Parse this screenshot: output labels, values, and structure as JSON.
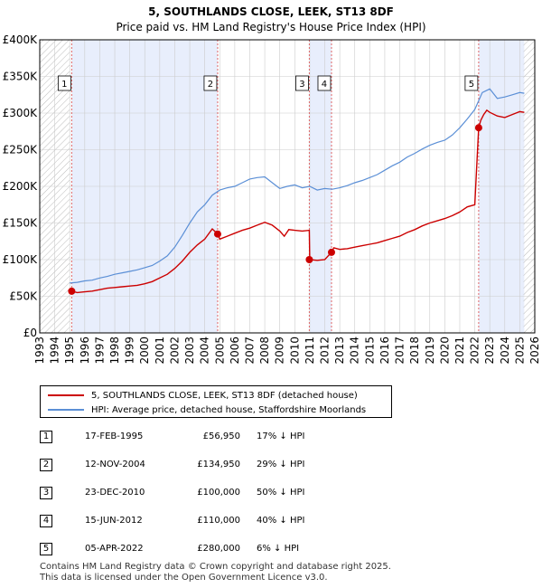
{
  "chart_data": {
    "type": "line",
    "title": "5, SOUTHLANDS CLOSE, LEEK, ST13 8DF",
    "subtitle": "Price paid vs. HM Land Registry's House Price Index (HPI)",
    "xlabel": "",
    "ylabel": "",
    "xlim": [
      1993,
      2026
    ],
    "ylim": [
      0,
      400000
    ],
    "x_ticks": [
      1993,
      1994,
      1995,
      1996,
      1997,
      1998,
      1999,
      2000,
      2001,
      2002,
      2003,
      2004,
      2005,
      2006,
      2007,
      2008,
      2009,
      2010,
      2011,
      2012,
      2013,
      2014,
      2015,
      2016,
      2017,
      2018,
      2019,
      2020,
      2021,
      2022,
      2023,
      2024,
      2025,
      2026
    ],
    "y_ticks": [
      {
        "value": 0,
        "label": "£0"
      },
      {
        "value": 50000,
        "label": "£50K"
      },
      {
        "value": 100000,
        "label": "£100K"
      },
      {
        "value": 150000,
        "label": "£150K"
      },
      {
        "value": 200000,
        "label": "£200K"
      },
      {
        "value": 250000,
        "label": "£250K"
      },
      {
        "value": 300000,
        "label": "£300K"
      },
      {
        "value": 350000,
        "label": "£350K"
      },
      {
        "value": 400000,
        "label": "£400K"
      }
    ],
    "grid": true,
    "hatched_ranges": [
      [
        1993,
        1995.0
      ],
      [
        2025.25,
        2026
      ]
    ],
    "colors": {
      "property": "#cc0000",
      "hpi": "#5b8fd6",
      "shade": "#e8eefc",
      "grid": "#cccccc",
      "vline": "#e06666"
    },
    "series": [
      {
        "name": "5, SOUTHLANDS CLOSE, LEEK, ST13 8DF (detached house)",
        "x": [
          1995.13,
          1995.5,
          1996.0,
          1996.5,
          1997.0,
          1997.5,
          1998.0,
          1998.5,
          1999.0,
          1999.5,
          2000.0,
          2000.5,
          2001.0,
          2001.5,
          2002.0,
          2002.5,
          2003.0,
          2003.5,
          2004.0,
          2004.5,
          2004.86,
          2005.0,
          2005.5,
          2006.0,
          2006.5,
          2007.0,
          2007.5,
          2008.0,
          2008.5,
          2009.0,
          2009.3,
          2009.6,
          2010.0,
          2010.5,
          2010.97,
          2011.0,
          2011.5,
          2012.0,
          2012.45,
          2012.6,
          2013.0,
          2013.5,
          2014.0,
          2014.5,
          2015.0,
          2015.5,
          2016.0,
          2016.5,
          2017.0,
          2017.5,
          2018.0,
          2018.5,
          2019.0,
          2019.5,
          2020.0,
          2020.5,
          2021.0,
          2021.5,
          2022.0,
          2022.26,
          2022.4,
          2022.6,
          2022.8,
          2023.0,
          2023.5,
          2024.0,
          2024.5,
          2025.0,
          2025.3
        ],
        "values": [
          56950,
          55000,
          56000,
          57000,
          59000,
          61000,
          62000,
          63000,
          64000,
          65000,
          67000,
          70000,
          75000,
          80000,
          88000,
          98000,
          110000,
          120000,
          128000,
          142000,
          134950,
          128000,
          132000,
          136000,
          140000,
          143000,
          147000,
          151000,
          147000,
          139000,
          132000,
          141000,
          140000,
          139000,
          140000,
          100000,
          99000,
          100000,
          110000,
          116000,
          114000,
          115000,
          117000,
          119000,
          121000,
          123000,
          126000,
          129000,
          132000,
          137000,
          141000,
          146000,
          150000,
          153000,
          156000,
          160000,
          165000,
          172000,
          175000,
          280000,
          290000,
          298000,
          304000,
          301000,
          296000,
          294000,
          298000,
          302000,
          301000
        ]
      },
      {
        "name": "HPI: Average price, detached house, Staffordshire Moorlands",
        "x": [
          1995.0,
          1995.5,
          1996.0,
          1996.5,
          1997.0,
          1997.5,
          1998.0,
          1998.5,
          1999.0,
          1999.5,
          2000.0,
          2000.5,
          2001.0,
          2001.5,
          2002.0,
          2002.5,
          2003.0,
          2003.5,
          2004.0,
          2004.5,
          2005.0,
          2005.5,
          2006.0,
          2006.5,
          2007.0,
          2007.5,
          2008.0,
          2008.5,
          2009.0,
          2009.5,
          2010.0,
          2010.5,
          2011.0,
          2011.5,
          2012.0,
          2012.5,
          2013.0,
          2013.5,
          2014.0,
          2014.5,
          2015.0,
          2015.5,
          2016.0,
          2016.5,
          2017.0,
          2017.5,
          2018.0,
          2018.5,
          2019.0,
          2019.5,
          2020.0,
          2020.5,
          2021.0,
          2021.5,
          2022.0,
          2022.5,
          2023.0,
          2023.5,
          2024.0,
          2024.5,
          2025.0,
          2025.3
        ],
        "values": [
          68000,
          69000,
          71000,
          72000,
          75000,
          77000,
          80000,
          82000,
          84000,
          86000,
          89000,
          92000,
          98000,
          105000,
          117000,
          133000,
          150000,
          165000,
          175000,
          188000,
          195000,
          198000,
          200000,
          205000,
          210000,
          212000,
          213000,
          205000,
          197000,
          200000,
          202000,
          198000,
          200000,
          195000,
          197000,
          196000,
          198000,
          201000,
          205000,
          208000,
          212000,
          216000,
          222000,
          228000,
          233000,
          240000,
          245000,
          251000,
          256000,
          260000,
          263000,
          270000,
          280000,
          292000,
          305000,
          328000,
          333000,
          320000,
          322000,
          325000,
          328000,
          327000
        ]
      }
    ],
    "sales": [
      {
        "num": "1",
        "x": 1995.13,
        "value": 56950
      },
      {
        "num": "2",
        "x": 2004.86,
        "value": 134950
      },
      {
        "num": "3",
        "x": 2010.97,
        "value": 100000
      },
      {
        "num": "4",
        "x": 2012.45,
        "value": 110000
      },
      {
        "num": "5",
        "x": 2022.26,
        "value": 280000
      }
    ],
    "shaded_spans": [
      [
        1995.13,
        2004.86
      ],
      [
        2010.97,
        2012.45
      ],
      [
        2022.26,
        2025.3
      ]
    ]
  },
  "legend": {
    "property_label": "5, SOUTHLANDS CLOSE, LEEK, ST13 8DF (detached house)",
    "hpi_label": "HPI: Average price, detached house, Staffordshire Moorlands"
  },
  "table": [
    {
      "num": "1",
      "date": "17-FEB-1995",
      "price": "£56,950",
      "hpi": "17% ↓ HPI"
    },
    {
      "num": "2",
      "date": "12-NOV-2004",
      "price": "£134,950",
      "hpi": "29% ↓ HPI"
    },
    {
      "num": "3",
      "date": "23-DEC-2010",
      "price": "£100,000",
      "hpi": "50% ↓ HPI"
    },
    {
      "num": "4",
      "date": "15-JUN-2012",
      "price": "£110,000",
      "hpi": "40% ↓ HPI"
    },
    {
      "num": "5",
      "date": "05-APR-2022",
      "price": "£280,000",
      "hpi": "6% ↓ HPI"
    }
  ],
  "footer": {
    "line1": "Contains HM Land Registry data © Crown copyright and database right 2025.",
    "line2": "This data is licensed under the Open Government Licence v3.0."
  }
}
